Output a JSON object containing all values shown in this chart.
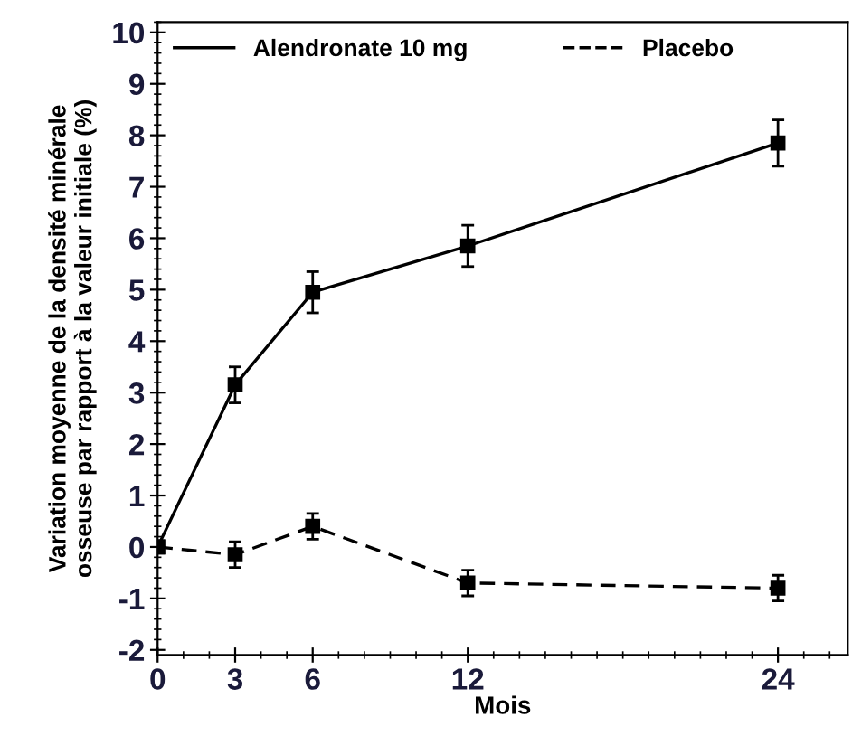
{
  "chart_data": {
    "type": "line",
    "xlabel": "Mois",
    "ylabel": "Variation moyenne de la densité minérale\nosseuse par rapport à la valeur initiale (%)",
    "x": [
      0,
      3,
      6,
      12,
      24
    ],
    "series": [
      {
        "name": "Alendronate 10 mg",
        "color": "#000000",
        "line_style": "solid",
        "values": [
          0,
          3.15,
          4.95,
          5.85,
          7.85
        ],
        "errors": [
          null,
          0.35,
          0.4,
          0.4,
          0.45
        ]
      },
      {
        "name": "Placebo",
        "color": "#000000",
        "line_style": "dashed",
        "values": [
          0,
          -0.15,
          0.4,
          -0.7,
          -0.8
        ],
        "errors": [
          null,
          0.25,
          0.25,
          0.25,
          0.25
        ]
      }
    ],
    "xlim": [
      0,
      26.7
    ],
    "ylim": [
      -2.1,
      10.2
    ],
    "xticks": [
      0,
      3,
      6,
      12,
      24
    ],
    "yticks": [
      -2,
      -1,
      0,
      1,
      2,
      3,
      4,
      5,
      6,
      7,
      8,
      9,
      10
    ],
    "marker": "square",
    "grid": false,
    "legend": "top left"
  }
}
